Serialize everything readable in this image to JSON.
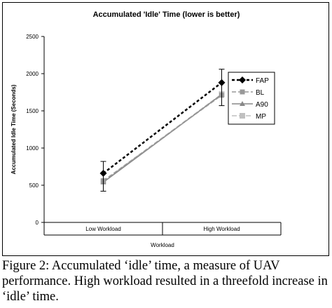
{
  "chart_data": {
    "type": "line",
    "title": "Accumulated 'Idle' Time (lower is better)",
    "xlabel": "Workload",
    "ylabel": "Accumulated Idle Time (Seconds)",
    "categories": [
      "Low Workload",
      "High Workload"
    ],
    "ylim": [
      0,
      2500
    ],
    "yticks": [
      0,
      500,
      1000,
      1500,
      2000,
      2500
    ],
    "grid": false,
    "legend_position": "right",
    "series": [
      {
        "name": "FAP",
        "values": [
          660,
          1880
        ],
        "error": [
          [
            420,
            820
          ],
          [
            1570,
            2060
          ]
        ],
        "color": "#000000",
        "dash": "4,3",
        "marker": "diamond"
      },
      {
        "name": "BL",
        "values": [
          560,
          1710
        ],
        "color": "#999999",
        "dash": "6,3",
        "marker": "square"
      },
      {
        "name": "A90",
        "values": [
          540,
          1720
        ],
        "color": "#888888",
        "dash": "",
        "marker": "triangle"
      },
      {
        "name": "MP",
        "values": [
          555,
          1725
        ],
        "color": "#c0c0c0",
        "dash": "7,3",
        "marker": "square-light"
      }
    ]
  },
  "caption": "Figure 2:  Accumulated ‘idle’ time, a measure of UAV performance.  High workload resulted in a threefold increase in ‘idle’ time."
}
